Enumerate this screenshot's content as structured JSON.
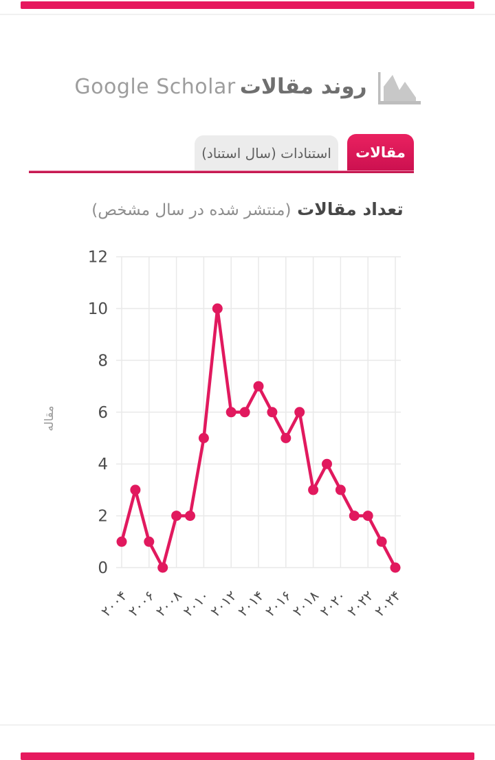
{
  "colors": {
    "accent": "#E6195E",
    "active_tab_top": "#EA2160",
    "active_tab_bottom": "#CC1150",
    "underline": "#C61A52",
    "inactive_tab_bg": "#ECECEC",
    "line": "#E1195E",
    "grid": "#E9E9E9",
    "tick_text": "#4c4c4c"
  },
  "header": {
    "brand": "Google Scholar",
    "title": "روند مقالات",
    "icon": "area-chart-icon"
  },
  "tabs": [
    {
      "label": "مقالات",
      "active": true
    },
    {
      "label": "استنادات (سال استناد)",
      "active": false
    }
  ],
  "chart_data": {
    "type": "line",
    "title": "تعداد مقالات (منتشر شده در سال مشخص)",
    "title_bold": "تعداد مقالات",
    "title_light": "(منتشر شده در سال مشخص)",
    "ylabel": "مقاله",
    "xlabel": "",
    "ylim": [
      0,
      12
    ],
    "yticks": [
      0,
      2,
      4,
      6,
      8,
      10,
      12
    ],
    "grid": true,
    "legend": "none",
    "line_color": "#E1195E",
    "grid_color": "#E9E9E9",
    "years": [
      2004,
      2005,
      2006,
      2007,
      2008,
      2009,
      2010,
      2011,
      2012,
      2013,
      2014,
      2015,
      2016,
      2017,
      2018,
      2019,
      2020,
      2021,
      2022,
      2023,
      2024
    ],
    "values": [
      1,
      3,
      1,
      0,
      2,
      2,
      5,
      10,
      6,
      6,
      7,
      6,
      5,
      6,
      3,
      4,
      3,
      2,
      2,
      1,
      0
    ],
    "xticks": [
      {
        "year": 2004,
        "label": "۲۰۰۴"
      },
      {
        "year": 2006,
        "label": "۲۰۰۶"
      },
      {
        "year": 2008,
        "label": "۲۰۰۸"
      },
      {
        "year": 2010,
        "label": "۲۰۱۰"
      },
      {
        "year": 2012,
        "label": "۲۰۱۲"
      },
      {
        "year": 2014,
        "label": "۲۰۱۴"
      },
      {
        "year": 2016,
        "label": "۲۰۱۶"
      },
      {
        "year": 2018,
        "label": "۲۰۱۸"
      },
      {
        "year": 2020,
        "label": "۲۰۲۰"
      },
      {
        "year": 2022,
        "label": "۲۰۲۲"
      },
      {
        "year": 2024,
        "label": "۲۰۲۴"
      }
    ]
  }
}
